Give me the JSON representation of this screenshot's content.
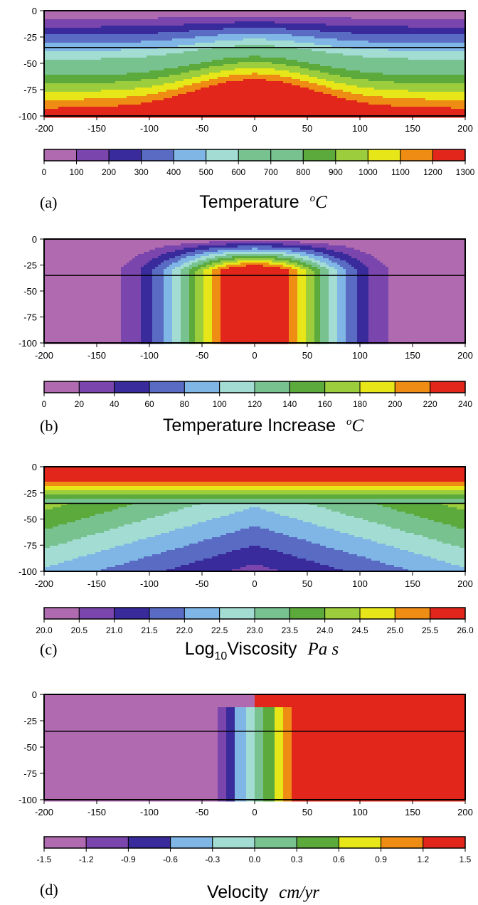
{
  "colors": [
    "#b06ab0",
    "#7a45ad",
    "#3a2b9c",
    "#5a6bc4",
    "#7fb6e6",
    "#a3dcd2",
    "#77c28f",
    "#5caa3c",
    "#9ccd3c",
    "#e6e619",
    "#ee8c14",
    "#e2261b"
  ],
  "chart_data": [
    {
      "panel": "(a)",
      "type": "heatmap",
      "subtype": "filled-contour",
      "title": "Temperature",
      "units": "oC",
      "xlim": [
        -200,
        200
      ],
      "ylim": [
        -100,
        0
      ],
      "xticks": [
        "-200",
        "-150",
        "-100",
        "-50",
        "0",
        "50",
        "100",
        "150",
        "200"
      ],
      "yticks": [
        "0",
        "-25",
        "-50",
        "-75",
        "-100"
      ],
      "colorbar_ticks": [
        "0",
        "100",
        "200",
        "300",
        "400",
        "500",
        "600",
        "700",
        "800",
        "900",
        "1000",
        "1100",
        "1200",
        "1300"
      ],
      "levels": [
        0,
        100,
        200,
        300,
        400,
        500,
        600,
        700,
        800,
        900,
        1000,
        1100,
        1200,
        1300
      ],
      "horizontal_line_y": -35
    },
    {
      "panel": "(b)",
      "type": "heatmap",
      "subtype": "filled-contour",
      "title": "Temperature Increase",
      "units": "oC",
      "xlim": [
        -200,
        200
      ],
      "ylim": [
        -100,
        0
      ],
      "xticks": [
        "-200",
        "-150",
        "-100",
        "-50",
        "0",
        "50",
        "100",
        "150",
        "200"
      ],
      "yticks": [
        "0",
        "-25",
        "-50",
        "-75",
        "-100"
      ],
      "colorbar_ticks": [
        "0",
        "20",
        "40",
        "60",
        "80",
        "100",
        "120",
        "140",
        "160",
        "180",
        "200",
        "220",
        "240"
      ],
      "levels": [
        0,
        20,
        40,
        60,
        80,
        100,
        120,
        140,
        160,
        180,
        200,
        220,
        240
      ],
      "horizontal_line_y": -35
    },
    {
      "panel": "(c)",
      "type": "heatmap",
      "subtype": "filled-contour",
      "title": "Log10Viscosity",
      "title_main": "Log",
      "title_sub": "10",
      "title_rest": "Viscosity",
      "units": "Pa s",
      "xlim": [
        -200,
        200
      ],
      "ylim": [
        -100,
        0
      ],
      "xticks": [
        "-200",
        "-150",
        "-100",
        "-50",
        "0",
        "50",
        "100",
        "150",
        "200"
      ],
      "yticks": [
        "0",
        "-25",
        "-50",
        "-75",
        "-100"
      ],
      "colorbar_ticks": [
        "20.0",
        "20.5",
        "21.0",
        "21.5",
        "22.0",
        "22.5",
        "23.0",
        "23.5",
        "24.0",
        "24.5",
        "25.0",
        "25.5",
        "26.0"
      ],
      "levels": [
        20.0,
        20.5,
        21.0,
        21.5,
        22.0,
        22.5,
        23.0,
        23.5,
        24.0,
        24.5,
        25.0,
        25.5,
        26.0
      ],
      "horizontal_line_y": -35
    },
    {
      "panel": "(d)",
      "type": "heatmap",
      "subtype": "filled-contour",
      "title": "Velocity",
      "units": "cm/yr",
      "xlim": [
        -200,
        200
      ],
      "ylim": [
        -100,
        0
      ],
      "xticks": [
        "-200",
        "-150",
        "-100",
        "-50",
        "0",
        "50",
        "100",
        "150",
        "200"
      ],
      "yticks": [
        "0",
        "-25",
        "-50",
        "-75",
        "-100"
      ],
      "colorbar_ticks": [
        "-1.5",
        "-1.2",
        "-0.9",
        "-0.6",
        "-0.3",
        "0.0",
        "0.3",
        "0.6",
        "0.9",
        "1.2",
        "1.5"
      ],
      "levels": [
        -1.5,
        -1.2,
        -0.9,
        -0.6,
        -0.3,
        0.0,
        0.3,
        0.6,
        0.9,
        1.2,
        1.5
      ],
      "horizontal_line_y": -35
    }
  ]
}
